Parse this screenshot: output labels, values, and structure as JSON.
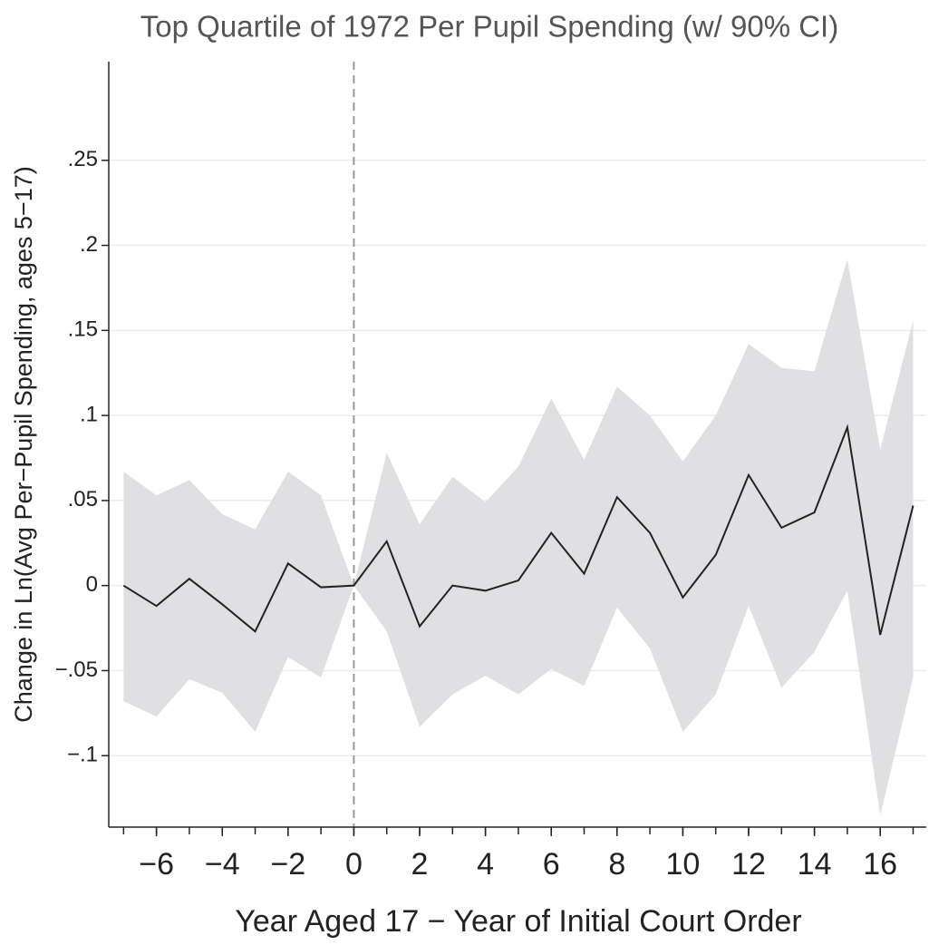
{
  "chart_data": {
    "type": "line",
    "title": "Top Quartile of 1972 Per Pupil Spending (w/ 90% CI)",
    "x_label": "Year Aged 17 − Year of Initial Court Order",
    "y_label": "Change in Ln(Avg Per−Pupil Spending, ages 5−17)",
    "x": [
      -7,
      -6,
      -5,
      -4,
      -3,
      -2,
      -1,
      0,
      1,
      2,
      3,
      4,
      5,
      6,
      7,
      8,
      9,
      10,
      11,
      12,
      13,
      14,
      15,
      16,
      17
    ],
    "values": [
      0,
      -0.012,
      0.004,
      -0.011,
      -0.027,
      0.013,
      -0.001,
      0,
      0.026,
      -0.024,
      0,
      -0.003,
      0.003,
      0.031,
      0.007,
      0.052,
      0.031,
      -0.007,
      0.018,
      0.065,
      0.034,
      0.043,
      0.093,
      -0.029,
      0.047
    ],
    "ci_upper": [
      0.067,
      0.053,
      0.062,
      0.042,
      0.033,
      0.067,
      0.053,
      0,
      0.078,
      0.036,
      0.064,
      0.049,
      0.07,
      0.11,
      0.074,
      0.117,
      0.1,
      0.073,
      0.1,
      0.142,
      0.128,
      0.126,
      0.192,
      0.08,
      0.156
    ],
    "ci_lower": [
      -0.068,
      -0.077,
      -0.055,
      -0.063,
      -0.086,
      -0.042,
      -0.054,
      0,
      -0.027,
      -0.083,
      -0.064,
      -0.053,
      -0.064,
      -0.049,
      -0.059,
      -0.013,
      -0.037,
      -0.086,
      -0.064,
      -0.012,
      -0.06,
      -0.039,
      -0.003,
      -0.135,
      -0.054
    ],
    "color": "#222222",
    "ci_color": "#e0e0e2",
    "vline": 0,
    "xlim": [
      -7.45,
      17.4
    ],
    "ylim": [
      -0.142,
      0.308
    ],
    "xticks": [
      {
        "value": -6,
        "label": "−6"
      },
      {
        "value": -4,
        "label": "−4"
      },
      {
        "value": -2,
        "label": "−2"
      },
      0,
      2,
      4,
      6,
      8,
      10,
      12,
      14,
      16
    ],
    "xminorticks": [
      -7,
      -6,
      -5,
      -4,
      -3,
      -2,
      -1,
      0,
      1,
      2,
      3,
      4,
      5,
      6,
      7,
      8,
      9,
      10,
      11,
      12,
      13,
      14,
      15,
      16,
      17
    ],
    "yticks": [
      {
        "value": -0.1,
        "label": "−.1"
      },
      {
        "value": -0.05,
        "label": "−.05"
      },
      0,
      {
        "value": 0.05,
        "label": ".05"
      },
      {
        "value": 0.1,
        "label": ".1"
      },
      {
        "value": 0.15,
        "label": ".15"
      },
      {
        "value": 0.2,
        "label": ".2"
      },
      {
        "value": 0.25,
        "label": ".25"
      }
    ],
    "grid": true
  }
}
